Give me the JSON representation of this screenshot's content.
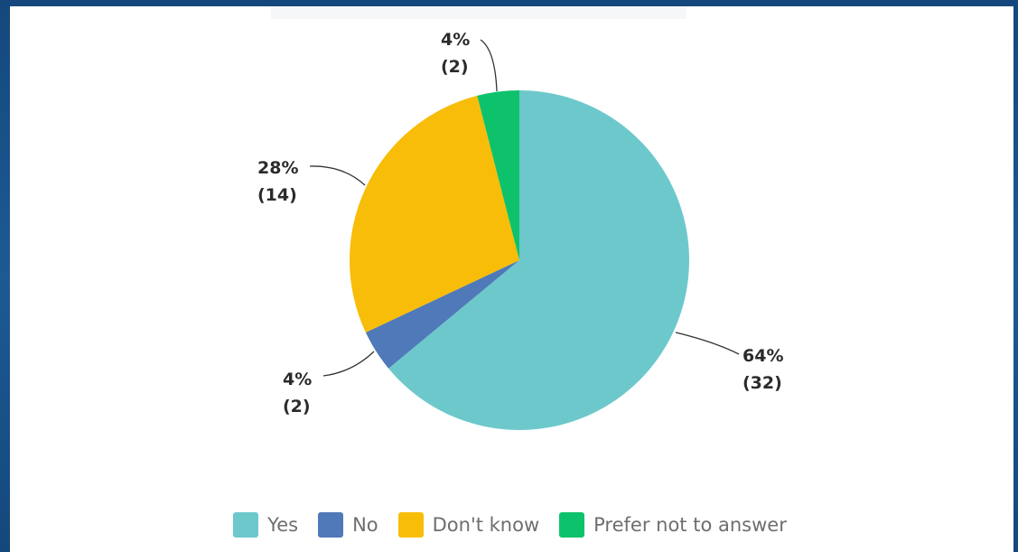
{
  "chart_data": {
    "type": "pie",
    "title": "",
    "legend_position": "bottom",
    "slices": [
      {
        "name": "Yes",
        "value": 64,
        "count": 32,
        "percent_label": "64%",
        "count_label": "(32)",
        "color": "#6dc8cc"
      },
      {
        "name": "No",
        "value": 4,
        "count": 2,
        "percent_label": "4%",
        "count_label": "(2)",
        "color": "#4f79b8"
      },
      {
        "name": "Don't know",
        "value": 28,
        "count": 14,
        "percent_label": "28%",
        "count_label": "(14)",
        "color": "#f8bd08"
      },
      {
        "name": "Prefer not to answer",
        "value": 4,
        "count": 2,
        "percent_label": "4%",
        "count_label": "(2)",
        "color": "#0ec26b"
      }
    ]
  }
}
